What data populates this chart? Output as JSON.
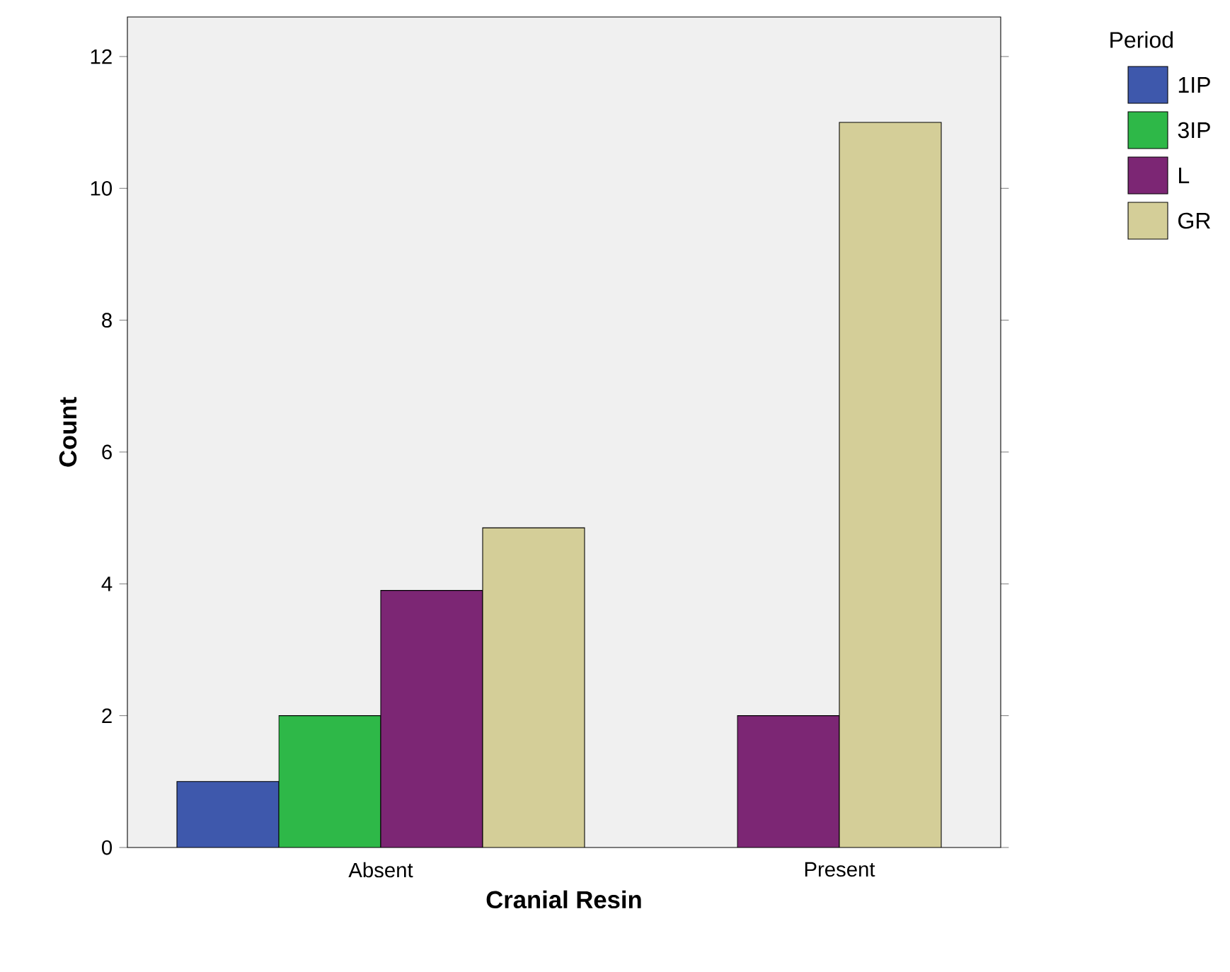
{
  "chart_data": {
    "type": "bar",
    "xlabel": "Cranial Resin",
    "ylabel": "Count",
    "legend_title": "Period",
    "legend": "right",
    "categories": [
      "Absent",
      "Present"
    ],
    "ylim": [
      0,
      12.6
    ],
    "yticks": [
      0,
      2,
      4,
      6,
      8,
      10,
      12
    ],
    "grid": false,
    "series": [
      {
        "name": "1IP",
        "color": "#3e58ac",
        "values": [
          1,
          null
        ]
      },
      {
        "name": "3IP",
        "color": "#2eb848",
        "values": [
          2,
          null
        ]
      },
      {
        "name": "L",
        "color": "#7c2674",
        "values": [
          3.9,
          2
        ]
      },
      {
        "name": "GR",
        "color": "#d4ce98",
        "values": [
          4.85,
          11
        ]
      }
    ]
  }
}
